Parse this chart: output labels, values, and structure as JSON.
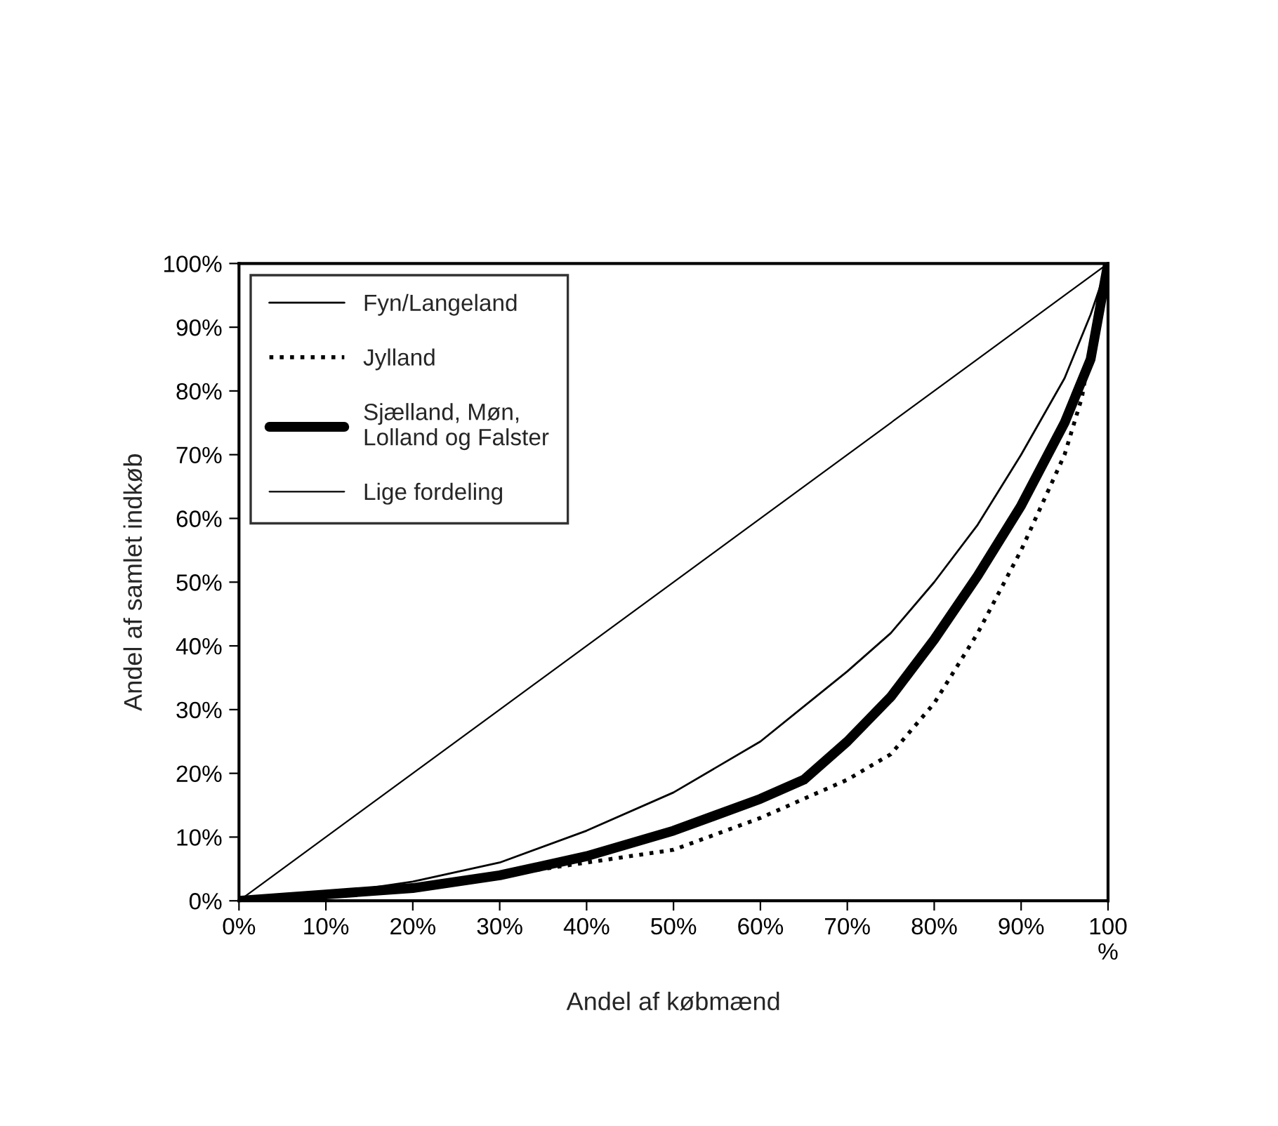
{
  "chart_data": {
    "type": "line",
    "xlabel": "Andel af købmænd",
    "ylabel": "Andel af samlet indkøb",
    "xlim": [
      0,
      100
    ],
    "ylim": [
      0,
      100
    ],
    "xticks": [
      {
        "value": 0,
        "label": "0%"
      },
      {
        "value": 10,
        "label": "10%"
      },
      {
        "value": 20,
        "label": "20%"
      },
      {
        "value": 30,
        "label": "30%"
      },
      {
        "value": 40,
        "label": "40%"
      },
      {
        "value": 50,
        "label": "50%"
      },
      {
        "value": 60,
        "label": "60%"
      },
      {
        "value": 70,
        "label": "70%"
      },
      {
        "value": 80,
        "label": "80%"
      },
      {
        "value": 90,
        "label": "90%"
      },
      {
        "value": 100,
        "label": "100\n%"
      }
    ],
    "yticks": [
      {
        "value": 0,
        "label": "0%"
      },
      {
        "value": 10,
        "label": "10%"
      },
      {
        "value": 20,
        "label": "20%"
      },
      {
        "value": 30,
        "label": "30%"
      },
      {
        "value": 40,
        "label": "40%"
      },
      {
        "value": 50,
        "label": "50%"
      },
      {
        "value": 60,
        "label": "60%"
      },
      {
        "value": 70,
        "label": "70%"
      },
      {
        "value": 80,
        "label": "80%"
      },
      {
        "value": 90,
        "label": "90%"
      },
      {
        "value": 100,
        "label": "100%"
      }
    ],
    "legend": "top left",
    "grid": false,
    "marker": "none",
    "series": [
      {
        "name": "Fyn/Langeland",
        "color": "#000000",
        "line_style": "solid",
        "x": [
          0,
          10,
          20,
          30,
          40,
          50,
          60,
          70,
          75,
          80,
          85,
          90,
          95,
          98,
          100
        ],
        "values": [
          0,
          1,
          3,
          6,
          11,
          17,
          25,
          36,
          42,
          50,
          59,
          70,
          82,
          92,
          100
        ]
      },
      {
        "name": "Jylland",
        "color": "#000000",
        "line_style": "dotted",
        "x": [
          0,
          10,
          20,
          30,
          40,
          50,
          60,
          70,
          75,
          80,
          85,
          90,
          95,
          97,
          98,
          99,
          100
        ],
        "values": [
          0,
          1,
          2,
          4,
          6,
          8,
          13,
          19,
          23,
          31,
          42,
          55,
          70,
          79,
          87,
          95,
          100
        ]
      },
      {
        "name": "Sjælland, Møn,\nLolland og Falster",
        "color": "#000000",
        "line_style": "solid",
        "x": [
          0,
          10,
          20,
          30,
          40,
          50,
          60,
          65,
          70,
          75,
          80,
          85,
          90,
          95,
          98,
          100
        ],
        "values": [
          0,
          1,
          2,
          4,
          7,
          11,
          16,
          19,
          25,
          32,
          41,
          51,
          62,
          75,
          85,
          100
        ]
      },
      {
        "name": "Lige fordeling",
        "color": "#000000",
        "line_style": "solid",
        "x": [
          0,
          100
        ],
        "values": [
          0,
          100
        ]
      }
    ]
  }
}
